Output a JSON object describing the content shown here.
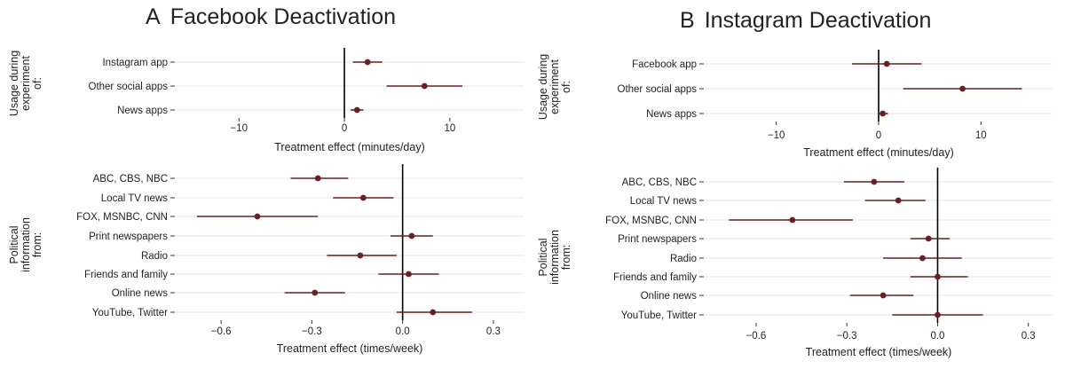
{
  "chart_data": [
    {
      "type": "scatter",
      "panel": "A",
      "title": "Facebook Deactivation",
      "subcharts": [
        {
          "group_label": [
            "Usage during",
            "experiment",
            "of:"
          ],
          "xlabel": "Treatment effect (minutes/day)",
          "xlim": [
            -16,
            17
          ],
          "ticks": [
            -10,
            0,
            10
          ],
          "tick_labels": [
            "−10",
            "0",
            "10"
          ],
          "rows": [
            {
              "label": "Instagram app",
              "estimate": 2.2,
              "ci": [
                0.8,
                3.6
              ]
            },
            {
              "label": "Other social apps",
              "estimate": 7.6,
              "ci": [
                4.0,
                11.2
              ]
            },
            {
              "label": "News apps",
              "estimate": 1.2,
              "ci": [
                0.6,
                1.8
              ]
            }
          ]
        },
        {
          "group_label": [
            "Political",
            "information",
            "from:"
          ],
          "xlabel": "Treatment effect (times/week)",
          "xlim": [
            -0.75,
            0.4
          ],
          "ticks": [
            -0.6,
            -0.3,
            0,
            0.3
          ],
          "tick_labels": [
            "−0.6",
            "−0.3",
            "0.0",
            "0.3"
          ],
          "rows": [
            {
              "label": "ABC, CBS, NBC",
              "estimate": -0.28,
              "ci": [
                -0.37,
                -0.18
              ]
            },
            {
              "label": "Local TV news",
              "estimate": -0.13,
              "ci": [
                -0.23,
                -0.03
              ]
            },
            {
              "label": "FOX, MSNBC, CNN",
              "estimate": -0.48,
              "ci": [
                -0.68,
                -0.28
              ]
            },
            {
              "label": "Print newspapers",
              "estimate": 0.03,
              "ci": [
                -0.04,
                0.1
              ]
            },
            {
              "label": "Radio",
              "estimate": -0.14,
              "ci": [
                -0.25,
                -0.02
              ]
            },
            {
              "label": "Friends and family",
              "estimate": 0.02,
              "ci": [
                -0.08,
                0.12
              ]
            },
            {
              "label": "Online news",
              "estimate": -0.29,
              "ci": [
                -0.39,
                -0.19
              ]
            },
            {
              "label": "YouTube, Twitter",
              "estimate": 0.1,
              "ci": [
                -0.02,
                0.23
              ]
            }
          ]
        }
      ]
    },
    {
      "type": "scatter",
      "panel": "B",
      "title": "Instagram Deactivation",
      "subcharts": [
        {
          "group_label": [
            "Usage during",
            "experiment",
            "of:"
          ],
          "xlabel": "Treatment effect (minutes/day)",
          "xlim": [
            -17,
            17
          ],
          "ticks": [
            -10,
            0,
            10
          ],
          "tick_labels": [
            "−10",
            "0",
            "10"
          ],
          "rows": [
            {
              "label": "Facebook app",
              "estimate": 0.8,
              "ci": [
                -2.6,
                4.2
              ]
            },
            {
              "label": "Other social apps",
              "estimate": 8.2,
              "ci": [
                2.4,
                14.0
              ]
            },
            {
              "label": "News apps",
              "estimate": 0.4,
              "ci": [
                0.0,
                0.9
              ]
            }
          ]
        },
        {
          "group_label": [
            "Political",
            "information",
            "from:"
          ],
          "xlabel": "Treatment effect (times/week)",
          "xlim": [
            -0.77,
            0.38
          ],
          "ticks": [
            -0.6,
            -0.3,
            0,
            0.3
          ],
          "tick_labels": [
            "−0.6",
            "−0.3",
            "0.0",
            "0.3"
          ],
          "rows": [
            {
              "label": "ABC, CBS, NBC",
              "estimate": -0.21,
              "ci": [
                -0.31,
                -0.11
              ]
            },
            {
              "label": "Local TV news",
              "estimate": -0.13,
              "ci": [
                -0.24,
                -0.04
              ]
            },
            {
              "label": "FOX, MSNBC, CNN",
              "estimate": -0.48,
              "ci": [
                -0.69,
                -0.28
              ]
            },
            {
              "label": "Print newspapers",
              "estimate": -0.03,
              "ci": [
                -0.09,
                0.04
              ]
            },
            {
              "label": "Radio",
              "estimate": -0.05,
              "ci": [
                -0.18,
                0.08
              ]
            },
            {
              "label": "Friends and family",
              "estimate": 0.0,
              "ci": [
                -0.09,
                0.1
              ]
            },
            {
              "label": "Online news",
              "estimate": -0.18,
              "ci": [
                -0.29,
                -0.08
              ]
            },
            {
              "label": "YouTube, Twitter",
              "estimate": 0.0,
              "ci": [
                -0.15,
                0.15
              ]
            }
          ]
        }
      ]
    }
  ],
  "colors": {
    "point": "#6b1f22",
    "gridline": "#ebebeb",
    "zeroline": "#000000"
  }
}
